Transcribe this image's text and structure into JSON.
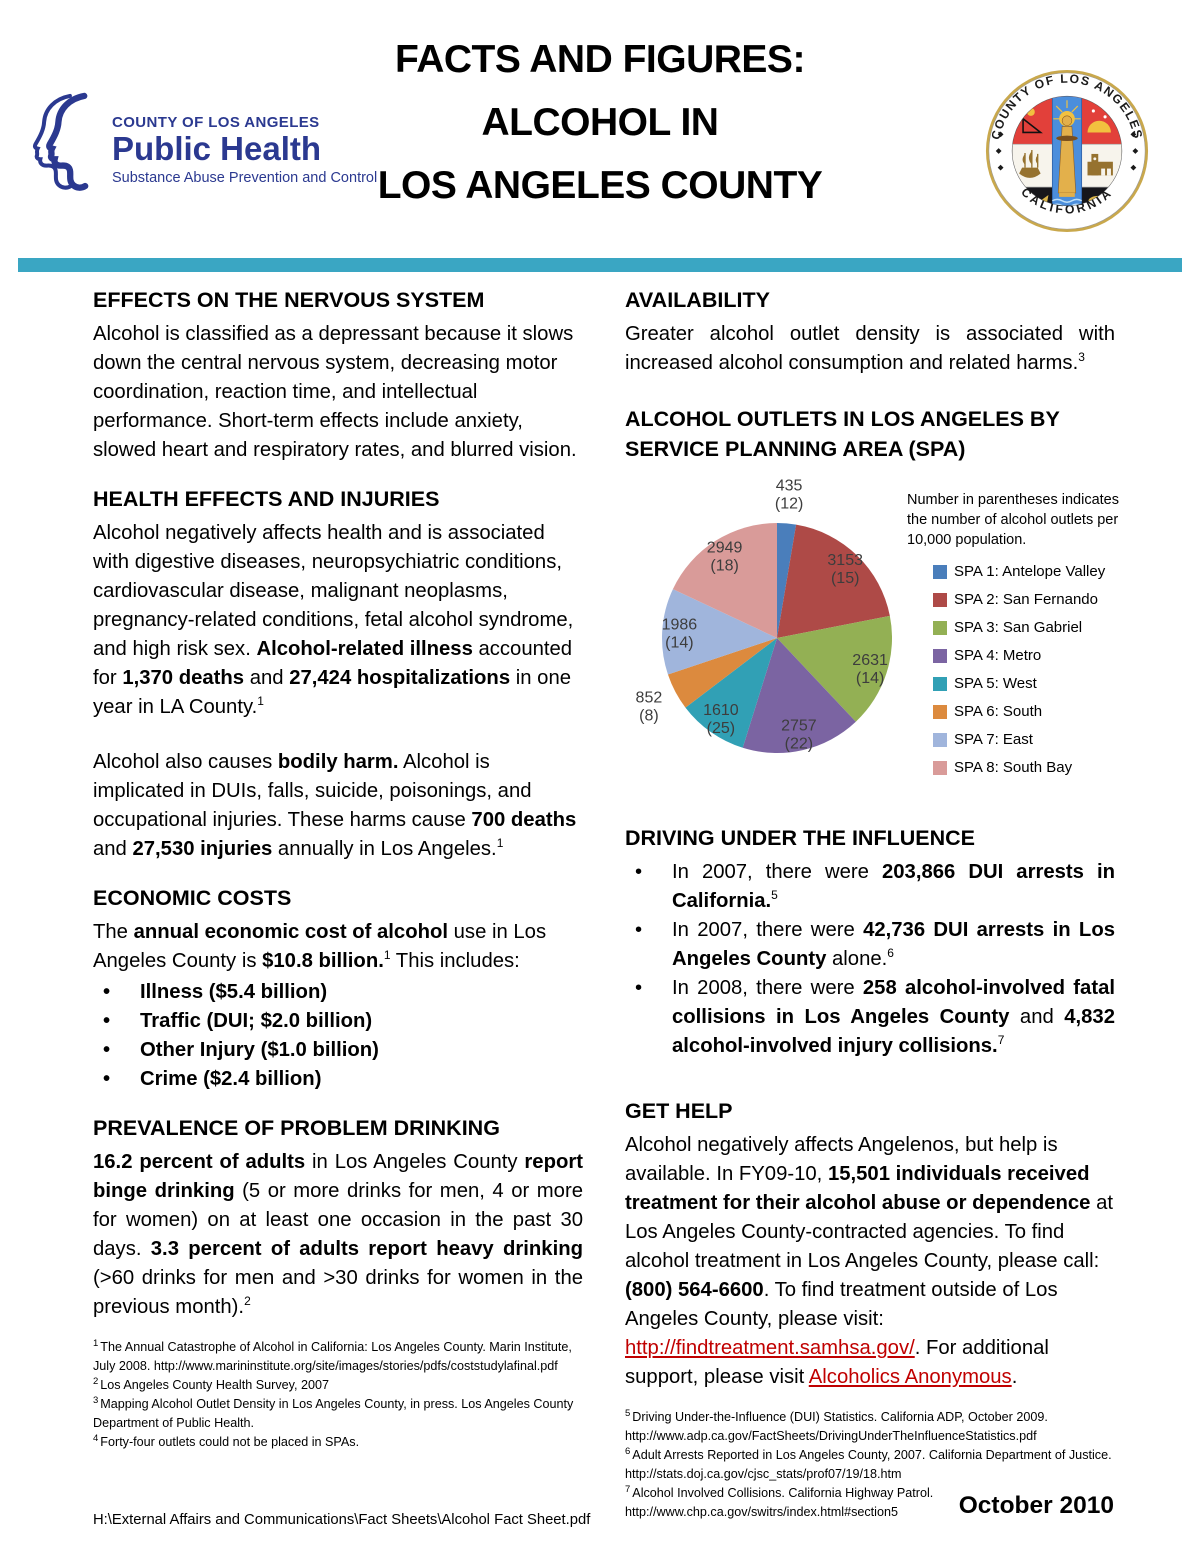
{
  "header": {
    "logo": {
      "line1": "COUNTY OF LOS ANGELES",
      "line2": "Public Health",
      "line3": "Substance Abuse Prevention and Control"
    },
    "title_lines": [
      "FACTS AND FIGURES:",
      "ALCOHOL IN",
      "LOS ANGELES COUNTY"
    ],
    "seal": {
      "top": "COUNTY OF LOS ANGELES",
      "bottom": "CALIFORNIA"
    },
    "divider_color": "#3AA6C3"
  },
  "left": {
    "s1": {
      "heading": "EFFECTS ON THE NERVOUS SYSTEM",
      "para": [
        {
          "t": "Alcohol is classified as a depressant because it slows down the central nervous system, decreasing motor coordination, reaction time, and intellectual performance. Short-term effects include anxiety, slowed heart and respiratory rates, and blurred vision."
        }
      ]
    },
    "s2": {
      "heading": "HEALTH EFFECTS AND INJURIES",
      "para": [
        {
          "t": "Alcohol negatively affects health and is associated with digestive diseases, neuropsychiatric conditions, cardiovascular disease, malignant neoplasms, pregnancy-related conditions, fetal alcohol syndrome, and high risk sex. "
        },
        {
          "t": "Alcohol-related illness",
          "b": true
        },
        {
          "t": " accounted for "
        },
        {
          "t": "1,370 deaths",
          "b": true
        },
        {
          "t": " and "
        },
        {
          "t": "27,424 hospitalizations",
          "b": true
        },
        {
          "t": " in one year in LA County."
        },
        {
          "t": "1",
          "sup": true
        }
      ],
      "para2": [
        {
          "t": "Alcohol also causes "
        },
        {
          "t": "bodily harm.",
          "b": true
        },
        {
          "t": " Alcohol is implicated in DUIs, falls, suicide, poisonings, and occupational injuries. These harms cause "
        },
        {
          "t": "700 deaths",
          "b": true
        },
        {
          "t": " and "
        },
        {
          "t": "27,530 injuries",
          "b": true
        },
        {
          "t": " annually in Los Angeles."
        },
        {
          "t": "1",
          "sup": true
        }
      ]
    },
    "s3": {
      "heading": "ECONOMIC COSTS",
      "para": [
        {
          "t": "The "
        },
        {
          "t": "annual economic cost of alcohol",
          "b": true
        },
        {
          "t": " use in Los Angeles County is "
        },
        {
          "t": "$10.8 billion.",
          "b": true
        },
        {
          "t": "1",
          "sup": true
        },
        {
          "t": " This includes:"
        }
      ],
      "bullets": [
        "Illness ($5.4 billion)",
        "Traffic (DUI; $2.0 billion)",
        "Other Injury ($1.0 billion)",
        "Crime ($2.4 billion)"
      ]
    },
    "s4": {
      "heading": "PREVALENCE OF PROBLEM DRINKING",
      "para": [
        {
          "t": "16.2 percent of adults",
          "b": true
        },
        {
          "t": " in Los Angeles County "
        },
        {
          "t": "report binge drinking",
          "b": true
        },
        {
          "t": " (5 or more drinks for men, 4 or more for women) on at least one occasion in the past 30 days. "
        },
        {
          "t": "3.3 percent of adults report heavy drinking",
          "b": true
        },
        {
          "t": " (>60 drinks for men and >30 drinks for women in the previous month)."
        },
        {
          "t": "2",
          "sup": true
        }
      ]
    },
    "footnotes": [
      {
        "n": "1",
        "t": "The Annual Catastrophe of Alcohol in California: Los Angeles County. Marin Institute, July 2008. http://www.marininstitute.org/site/images/stories/pdfs/coststudylafinal.pdf"
      },
      {
        "n": "2",
        "t": "Los Angeles County Health Survey, 2007"
      },
      {
        "n": "3",
        "t": "Mapping Alcohol Outlet Density in Los Angeles County, in press. Los Angeles County Department of Public Health."
      },
      {
        "n": "4",
        "t": "Forty-four outlets could not be placed in SPAs."
      }
    ]
  },
  "right": {
    "s1": {
      "heading": "AVAILABILITY",
      "para": [
        {
          "t": "Greater alcohol outlet density is associated with increased alcohol consumption and related harms."
        },
        {
          "t": "3",
          "sup": true
        }
      ]
    },
    "s2": {
      "heading": "DRIVING UNDER THE INFLUENCE",
      "bullets": [
        [
          {
            "t": "In 2007, there were "
          },
          {
            "t": "203,866 DUI arrests in California.",
            "b": true
          },
          {
            "t": "5",
            "sup": true
          }
        ],
        [
          {
            "t": "In 2007, there were "
          },
          {
            "t": "42,736 DUI arrests in Los Angeles County",
            "b": true
          },
          {
            "t": " alone."
          },
          {
            "t": "6",
            "sup": true
          }
        ],
        [
          {
            "t": "In 2008, there were "
          },
          {
            "t": "258 alcohol-involved fatal collisions in Los Angeles County",
            "b": true
          },
          {
            "t": " and "
          },
          {
            "t": "4,832 alcohol-involved injury collisions.",
            "b": true
          },
          {
            "t": "7",
            "sup": true
          }
        ]
      ]
    },
    "s3": {
      "heading": "GET HELP",
      "para": [
        {
          "t": "Alcohol negatively affects Angelenos, but help is available. In FY09-10, "
        },
        {
          "t": "15,501 individuals received treatment for their alcohol abuse or dependence",
          "b": true
        },
        {
          "t": " at Los Angeles County-contracted agencies. To find alcohol treatment in Los Angeles County, please call: "
        },
        {
          "t": "(800) 564-6600",
          "b": true
        },
        {
          "t": ". To find treatment outside of Los Angeles County, please visit: "
        },
        {
          "t": "http://findtreatment.samhsa.gov/",
          "link": true
        },
        {
          "t": ". For additional support, please visit "
        },
        {
          "t": "Alcoholics Anonymous",
          "link": true
        },
        {
          "t": "."
        }
      ]
    },
    "footnotes": [
      {
        "n": "5",
        "t": "Driving Under-the-Influence (DUI) Statistics. California ADP, October 2009. http://www.adp.ca.gov/FactSheets/DrivingUnderTheInfluenceStatistics.pdf"
      },
      {
        "n": "6",
        "t": "Adult Arrests Reported in Los Angeles County, 2007. California Department of Justice. http://stats.doj.ca.gov/cjsc_stats/prof07/19/18.htm"
      },
      {
        "n": "7",
        "t": "Alcohol Involved Collisions. California Highway Patrol. http://www.chp.ca.gov/switrs/index.html#section5"
      }
    ]
  },
  "chart_data": {
    "type": "pie",
    "title": "ALCOHOL OUTLETS IN LOS ANGELES BY SERVICE PLANNING AREA (SPA)",
    "note": "Number in parentheses indicates the number of alcohol outlets per 10,000 population.",
    "legend_position": "right",
    "start_angle_deg": 0,
    "direction": "clockwise",
    "total": 16373,
    "series": [
      {
        "label": "SPA 1: Antelope Valley",
        "value": 435,
        "outlets_per_10000": 12,
        "color": "#4A7EBB"
      },
      {
        "label": "SPA 2: San Fernando",
        "value": 3153,
        "outlets_per_10000": 15,
        "color": "#AE4A47"
      },
      {
        "label": "SPA 3: San Gabriel",
        "value": 2631,
        "outlets_per_10000": 14,
        "color": "#93B054"
      },
      {
        "label": "SPA 4: Metro",
        "value": 2757,
        "outlets_per_10000": 22,
        "color": "#7B64A2"
      },
      {
        "label": "SPA 5: West",
        "value": 1610,
        "outlets_per_10000": 25,
        "color": "#31A0B5"
      },
      {
        "label": "SPA 6: South",
        "value": 852,
        "outlets_per_10000": 8,
        "color": "#DC8A3E"
      },
      {
        "label": "SPA 7: East",
        "value": 1986,
        "outlets_per_10000": 14,
        "color": "#A0B5DC"
      },
      {
        "label": "SPA 8: South Bay",
        "value": 2949,
        "outlets_per_10000": 18,
        "color": "#D99B99"
      }
    ]
  },
  "page": {
    "footer_path": "H:\\External Affairs and Communications\\Fact Sheets\\Alcohol Fact Sheet.pdf",
    "date": "October 2010"
  }
}
